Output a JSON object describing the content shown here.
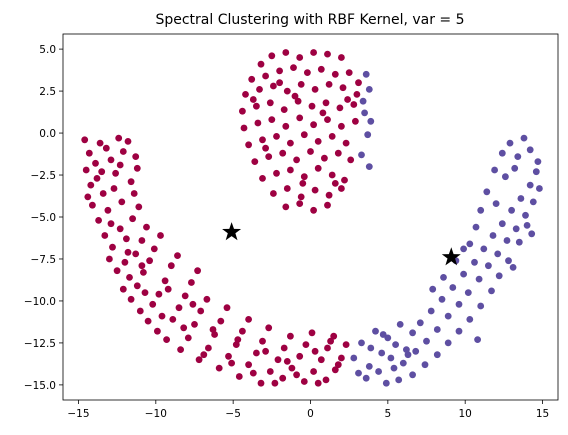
{
  "chart_data": {
    "type": "scatter",
    "title": "Spectral Clustering with RBF Kernel, var = 5",
    "xlabel": "",
    "ylabel": "",
    "xlim": [
      -16.0,
      16.0
    ],
    "ylim": [
      -15.9,
      5.9
    ],
    "x_ticks": [
      -15,
      -10,
      -5,
      0,
      5,
      10,
      15
    ],
    "y_ticks": [
      5.0,
      2.5,
      0.0,
      -2.5,
      -5.0,
      -7.5,
      -10.0,
      -12.5,
      -15.0
    ],
    "x_tick_labels": [
      "−15",
      "−10",
      "−5",
      "0",
      "5",
      "10",
      "15"
    ],
    "y_tick_labels": [
      "5.0",
      "2.5",
      "0.0",
      "−2.5",
      "−5.0",
      "−7.5",
      "−10.0",
      "−12.5",
      "−15.0"
    ],
    "grid": false,
    "colors": {
      "cluster_0": "#9e0142",
      "cluster_1": "#5e4fa2",
      "centroid": "#000000"
    },
    "series": [
      {
        "values": [
          [
            -14.6,
            -0.4
          ],
          [
            -14.3,
            -1.2
          ],
          [
            -14.5,
            -2.2
          ],
          [
            -13.9,
            -1.8
          ],
          [
            -14.2,
            -3.1
          ],
          [
            -13.6,
            -0.6
          ],
          [
            -13.8,
            -2.7
          ],
          [
            -13.2,
            -0.9
          ],
          [
            -12.9,
            -1.6
          ],
          [
            -12.4,
            -0.3
          ],
          [
            -12.1,
            -1.1
          ],
          [
            -11.8,
            -0.5
          ],
          [
            -11.3,
            -1.4
          ],
          [
            -12.6,
            -2.4
          ],
          [
            -13.4,
            -3.6
          ],
          [
            -14.1,
            -4.3
          ],
          [
            -13.7,
            -5.2
          ],
          [
            -13.1,
            -4.6
          ],
          [
            -12.7,
            -3.3
          ],
          [
            -12.2,
            -4.1
          ],
          [
            -11.6,
            -2.9
          ],
          [
            -11.2,
            -2.1
          ],
          [
            -13.3,
            -6.1
          ],
          [
            -12.8,
            -6.8
          ],
          [
            -12.3,
            -5.7
          ],
          [
            -11.9,
            -6.3
          ],
          [
            -11.5,
            -5.1
          ],
          [
            -11.1,
            -4.4
          ],
          [
            -13.0,
            -7.5
          ],
          [
            -12.5,
            -8.2
          ],
          [
            -12.0,
            -7.7
          ],
          [
            -11.7,
            -8.6
          ],
          [
            -11.3,
            -7.2
          ],
          [
            -10.9,
            -6.4
          ],
          [
            -10.6,
            -5.6
          ],
          [
            -12.1,
            -9.3
          ],
          [
            -11.6,
            -9.9
          ],
          [
            -11.2,
            -9.1
          ],
          [
            -10.8,
            -8.3
          ],
          [
            -10.4,
            -7.6
          ],
          [
            -10.1,
            -6.9
          ],
          [
            -9.7,
            -6.1
          ],
          [
            -11.0,
            -10.6
          ],
          [
            -10.5,
            -11.2
          ],
          [
            -10.2,
            -10.2
          ],
          [
            -9.8,
            -9.6
          ],
          [
            -9.4,
            -8.8
          ],
          [
            -9.0,
            -7.9
          ],
          [
            -8.6,
            -7.3
          ],
          [
            -9.9,
            -11.8
          ],
          [
            -9.3,
            -12.3
          ],
          [
            -8.9,
            -11.1
          ],
          [
            -8.5,
            -10.4
          ],
          [
            -8.1,
            -9.7
          ],
          [
            -7.7,
            -8.9
          ],
          [
            -7.3,
            -8.2
          ],
          [
            -8.4,
            -12.9
          ],
          [
            -7.9,
            -12.2
          ],
          [
            -7.5,
            -11.4
          ],
          [
            -7.1,
            -10.6
          ],
          [
            -6.7,
            -9.9
          ],
          [
            -7.2,
            -13.5
          ],
          [
            -6.6,
            -12.8
          ],
          [
            -6.2,
            -12.0
          ],
          [
            -5.8,
            -11.2
          ],
          [
            -5.4,
            -10.4
          ],
          [
            -5.9,
            -14.0
          ],
          [
            -5.3,
            -13.3
          ],
          [
            -4.8,
            -12.6
          ],
          [
            -4.4,
            -11.8
          ],
          [
            -4.0,
            -11.1
          ],
          [
            -4.6,
            -14.5
          ],
          [
            -4.0,
            -13.8
          ],
          [
            -3.5,
            -13.1
          ],
          [
            -3.1,
            -12.4
          ],
          [
            -2.7,
            -11.6
          ],
          [
            -3.2,
            -14.9
          ],
          [
            -2.6,
            -14.2
          ],
          [
            -2.1,
            -13.5
          ],
          [
            -1.7,
            -12.8
          ],
          [
            -1.3,
            -12.1
          ],
          [
            -1.8,
            -14.6
          ],
          [
            -1.2,
            -14.0
          ],
          [
            -0.7,
            -13.3
          ],
          [
            -0.3,
            -12.6
          ],
          [
            0.1,
            -11.9
          ],
          [
            -0.4,
            -14.8
          ],
          [
            0.2,
            -14.2
          ],
          [
            0.7,
            -13.5
          ],
          [
            1.1,
            -12.8
          ],
          [
            1.5,
            -12.1
          ],
          [
            1.0,
            -14.7
          ],
          [
            1.6,
            -14.1
          ],
          [
            2.0,
            -13.4
          ],
          [
            2.3,
            -12.6
          ],
          [
            -14.4,
            -3.8
          ],
          [
            -13.5,
            -2.3
          ],
          [
            -12.3,
            -1.9
          ],
          [
            -11.4,
            -3.6
          ],
          [
            -12.9,
            -5.4
          ],
          [
            -11.8,
            -7.1
          ],
          [
            -10.7,
            -9.5
          ],
          [
            -9.6,
            -10.9
          ],
          [
            -8.2,
            -11.6
          ],
          [
            -6.9,
            -13.2
          ],
          [
            -5.1,
            -13.7
          ],
          [
            -3.7,
            -14.3
          ],
          [
            -2.3,
            -14.9
          ],
          [
            -0.9,
            -14.4
          ],
          [
            0.5,
            -14.9
          ],
          [
            1.8,
            -13.8
          ],
          [
            -10.9,
            -7.9
          ],
          [
            -9.2,
            -9.3
          ],
          [
            -7.6,
            -10.2
          ],
          [
            -6.3,
            -11.7
          ],
          [
            -4.7,
            -12.3
          ],
          [
            -2.9,
            -13.0
          ],
          [
            -1.5,
            -13.6
          ],
          [
            0.3,
            -13.0
          ],
          [
            1.3,
            -12.4
          ],
          [
            -3.2,
            4.1
          ],
          [
            -2.5,
            4.6
          ],
          [
            -1.6,
            4.8
          ],
          [
            -0.7,
            4.5
          ],
          [
            0.2,
            4.8
          ],
          [
            1.1,
            4.7
          ],
          [
            2.0,
            4.5
          ],
          [
            -3.8,
            3.2
          ],
          [
            -2.9,
            3.4
          ],
          [
            -2.0,
            3.7
          ],
          [
            -1.1,
            3.9
          ],
          [
            -0.2,
            3.6
          ],
          [
            0.7,
            3.8
          ],
          [
            1.6,
            3.5
          ],
          [
            2.5,
            3.6
          ],
          [
            3.1,
            3.0
          ],
          [
            -4.2,
            2.3
          ],
          [
            -3.3,
            2.6
          ],
          [
            -2.4,
            2.8
          ],
          [
            -1.5,
            2.5
          ],
          [
            -0.6,
            2.9
          ],
          [
            0.3,
            2.6
          ],
          [
            1.2,
            2.9
          ],
          [
            2.1,
            2.7
          ],
          [
            3.0,
            2.3
          ],
          [
            -4.4,
            1.3
          ],
          [
            -3.5,
            1.6
          ],
          [
            -2.6,
            1.8
          ],
          [
            -1.7,
            1.4
          ],
          [
            -0.8,
            1.9
          ],
          [
            0.1,
            1.6
          ],
          [
            1.0,
            1.8
          ],
          [
            1.9,
            1.5
          ],
          [
            2.8,
            1.7
          ],
          [
            -4.3,
            0.3
          ],
          [
            -3.4,
            0.6
          ],
          [
            -2.5,
            0.8
          ],
          [
            -1.6,
            0.4
          ],
          [
            -0.7,
            0.9
          ],
          [
            0.2,
            0.5
          ],
          [
            1.1,
            0.8
          ],
          [
            2.0,
            0.4
          ],
          [
            2.9,
            0.7
          ],
          [
            -4.0,
            -0.7
          ],
          [
            -3.1,
            -0.4
          ],
          [
            -2.2,
            -0.2
          ],
          [
            -1.3,
            -0.6
          ],
          [
            -0.4,
            -0.1
          ],
          [
            0.5,
            -0.5
          ],
          [
            1.4,
            -0.2
          ],
          [
            2.3,
            -0.6
          ],
          [
            -3.6,
            -1.7
          ],
          [
            -2.7,
            -1.4
          ],
          [
            -1.8,
            -1.2
          ],
          [
            -0.9,
            -1.6
          ],
          [
            0.0,
            -1.1
          ],
          [
            0.9,
            -1.5
          ],
          [
            1.8,
            -1.2
          ],
          [
            2.6,
            -1.6
          ],
          [
            -3.1,
            -2.7
          ],
          [
            -2.2,
            -2.4
          ],
          [
            -1.3,
            -2.2
          ],
          [
            -0.4,
            -2.6
          ],
          [
            0.5,
            -2.1
          ],
          [
            1.4,
            -2.5
          ],
          [
            2.2,
            -2.8
          ],
          [
            -2.4,
            -3.6
          ],
          [
            -1.5,
            -3.3
          ],
          [
            -0.6,
            -3.8
          ],
          [
            0.3,
            -3.4
          ],
          [
            1.2,
            -3.7
          ],
          [
            2.0,
            -3.3
          ],
          [
            -1.6,
            -4.4
          ],
          [
            -0.7,
            -4.2
          ],
          [
            0.2,
            -4.6
          ],
          [
            1.1,
            -4.3
          ],
          [
            -2.0,
            3.0
          ],
          [
            -1.0,
            2.2
          ],
          [
            0.8,
            1.2
          ],
          [
            -2.9,
            -0.9
          ],
          [
            -0.5,
            -3.0
          ],
          [
            1.6,
            -3.0
          ],
          [
            -3.7,
            2.0
          ],
          [
            2.4,
            2.0
          ]
        ]
      },
      {
        "values": [
          [
            3.6,
            3.5
          ],
          [
            3.8,
            2.6
          ],
          [
            3.4,
            1.9
          ],
          [
            3.9,
            0.7
          ],
          [
            3.7,
            -0.1
          ],
          [
            3.3,
            -1.3
          ],
          [
            3.8,
            -2.0
          ],
          [
            3.5,
            1.2
          ],
          [
            2.8,
            -13.4
          ],
          [
            3.3,
            -12.5
          ],
          [
            3.8,
            -13.9
          ],
          [
            4.2,
            -11.8
          ],
          [
            4.6,
            -13.1
          ],
          [
            5.0,
            -12.2
          ],
          [
            5.4,
            -14.0
          ],
          [
            5.8,
            -11.4
          ],
          [
            6.2,
            -12.9
          ],
          [
            6.6,
            -11.9
          ],
          [
            3.1,
            -14.3
          ],
          [
            3.6,
            -14.6
          ],
          [
            4.4,
            -14.2
          ],
          [
            5.2,
            -13.4
          ],
          [
            6.0,
            -13.7
          ],
          [
            6.8,
            -13.0
          ],
          [
            7.1,
            -11.3
          ],
          [
            7.5,
            -12.4
          ],
          [
            7.8,
            -10.6
          ],
          [
            8.2,
            -11.7
          ],
          [
            8.5,
            -9.9
          ],
          [
            8.9,
            -10.9
          ],
          [
            9.2,
            -9.2
          ],
          [
            9.6,
            -10.2
          ],
          [
            9.9,
            -8.4
          ],
          [
            10.2,
            -9.5
          ],
          [
            10.6,
            -7.7
          ],
          [
            10.9,
            -8.7
          ],
          [
            11.2,
            -6.9
          ],
          [
            11.5,
            -7.9
          ],
          [
            11.8,
            -6.1
          ],
          [
            12.1,
            -7.2
          ],
          [
            12.4,
            -5.4
          ],
          [
            12.7,
            -6.4
          ],
          [
            13.0,
            -4.6
          ],
          [
            13.3,
            -5.7
          ],
          [
            13.6,
            -3.9
          ],
          [
            13.9,
            -4.9
          ],
          [
            14.2,
            -3.1
          ],
          [
            14.4,
            -4.1
          ],
          [
            14.6,
            -2.3
          ],
          [
            14.8,
            -3.3
          ],
          [
            12.4,
            -1.2
          ],
          [
            12.9,
            -0.6
          ],
          [
            13.4,
            -1.4
          ],
          [
            13.8,
            -0.3
          ],
          [
            14.2,
            -1.0
          ],
          [
            14.7,
            -1.7
          ],
          [
            11.9,
            -2.2
          ],
          [
            12.6,
            -2.6
          ],
          [
            13.2,
            -2.1
          ],
          [
            11.4,
            -3.5
          ],
          [
            11.0,
            -4.6
          ],
          [
            10.7,
            -5.6
          ],
          [
            10.3,
            -6.6
          ],
          [
            9.9,
            -6.9
          ],
          [
            12.0,
            -4.2
          ],
          [
            13.5,
            -6.5
          ],
          [
            14.0,
            -5.5
          ],
          [
            12.8,
            -7.6
          ],
          [
            12.2,
            -8.5
          ],
          [
            11.7,
            -9.4
          ],
          [
            11.0,
            -10.3
          ],
          [
            10.3,
            -11.1
          ],
          [
            9.6,
            -11.8
          ],
          [
            8.9,
            -12.5
          ],
          [
            8.2,
            -13.2
          ],
          [
            7.4,
            -13.8
          ],
          [
            6.6,
            -14.4
          ],
          [
            5.7,
            -14.7
          ],
          [
            4.9,
            -14.9
          ],
          [
            9.4,
            -7.6
          ],
          [
            8.6,
            -8.6
          ],
          [
            7.9,
            -9.3
          ],
          [
            10.8,
            -12.3
          ],
          [
            14.3,
            -6.0
          ],
          [
            13.1,
            -8.0
          ],
          [
            3.9,
            -12.8
          ],
          [
            4.7,
            -12.0
          ],
          [
            5.5,
            -12.6
          ],
          [
            6.3,
            -13.2
          ]
        ]
      }
    ],
    "centroids": [
      [
        -5.1,
        -5.9
      ],
      [
        9.1,
        -7.4
      ]
    ]
  }
}
